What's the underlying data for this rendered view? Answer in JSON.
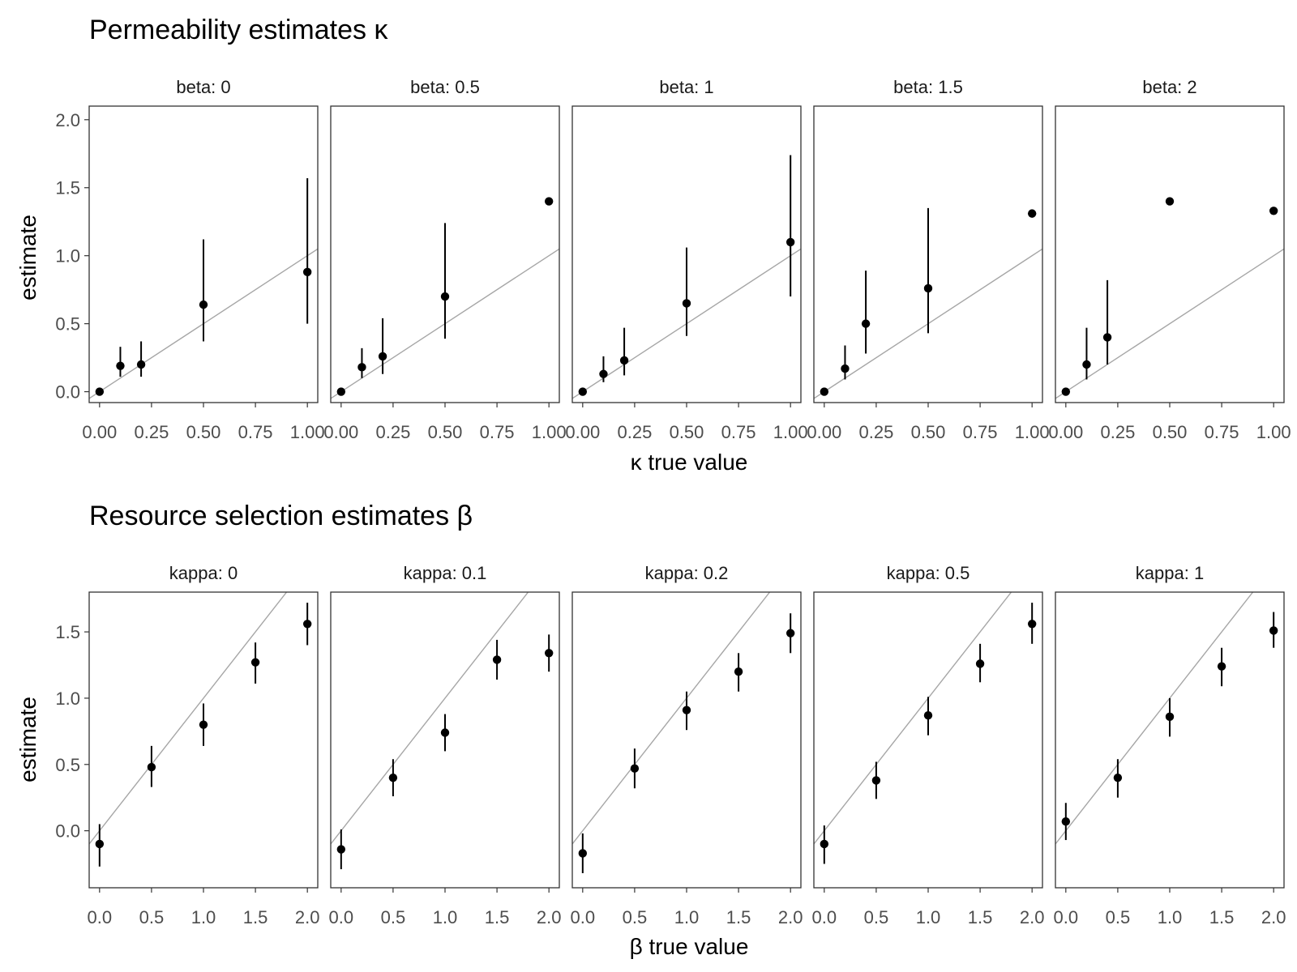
{
  "colors": {
    "points": "#000000",
    "reference_line": "#a6a6a6",
    "panel_border": "#333333",
    "tick_text": "#4d4d4d"
  },
  "chart_data": [
    {
      "type": "scatter",
      "title": "Permeability estimates κ",
      "xlabel": "κ true value",
      "ylabel": "estimate",
      "xlim": [
        -0.05,
        1.05
      ],
      "ylim": [
        -0.08,
        2.1
      ],
      "x_ticks": [
        0,
        0.25,
        0.5,
        0.75,
        1
      ],
      "x_tick_labels": [
        "0.00",
        "0.25",
        "0.50",
        "0.75",
        "1.00"
      ],
      "y_ticks": [
        0,
        0.5,
        1,
        1.5,
        2
      ],
      "y_tick_labels": [
        "0.0",
        "0.5",
        "1.0",
        "1.5",
        "2.0"
      ],
      "reference_line": "y = x",
      "grid": false,
      "facets": [
        {
          "label": "beta: 0",
          "points": [
            {
              "x": 0,
              "y": 0.0,
              "lo": 0.0,
              "hi": 0.0
            },
            {
              "x": 0.1,
              "y": 0.19,
              "lo": 0.11,
              "hi": 0.33
            },
            {
              "x": 0.2,
              "y": 0.2,
              "lo": 0.11,
              "hi": 0.37
            },
            {
              "x": 0.5,
              "y": 0.64,
              "lo": 0.37,
              "hi": 1.12
            },
            {
              "x": 1.0,
              "y": 0.88,
              "lo": 0.5,
              "hi": 1.57
            }
          ]
        },
        {
          "label": "beta: 0.5",
          "points": [
            {
              "x": 0,
              "y": 0.0,
              "lo": 0.0,
              "hi": 0.0
            },
            {
              "x": 0.1,
              "y": 0.18,
              "lo": 0.1,
              "hi": 0.32
            },
            {
              "x": 0.2,
              "y": 0.26,
              "lo": 0.13,
              "hi": 0.54
            },
            {
              "x": 0.5,
              "y": 0.7,
              "lo": 0.39,
              "hi": 1.24
            },
            {
              "x": 1.0,
              "y": 1.4,
              "lo": 1.4,
              "hi": 1.4
            }
          ]
        },
        {
          "label": "beta: 1",
          "points": [
            {
              "x": 0,
              "y": 0.0,
              "lo": 0.0,
              "hi": 0.0
            },
            {
              "x": 0.1,
              "y": 0.13,
              "lo": 0.07,
              "hi": 0.26
            },
            {
              "x": 0.2,
              "y": 0.23,
              "lo": 0.12,
              "hi": 0.47
            },
            {
              "x": 0.5,
              "y": 0.65,
              "lo": 0.41,
              "hi": 1.06
            },
            {
              "x": 1.0,
              "y": 1.1,
              "lo": 0.7,
              "hi": 1.74
            }
          ]
        },
        {
          "label": "beta: 1.5",
          "points": [
            {
              "x": 0,
              "y": 0.0,
              "lo": 0.0,
              "hi": 0.0
            },
            {
              "x": 0.1,
              "y": 0.17,
              "lo": 0.09,
              "hi": 0.34
            },
            {
              "x": 0.2,
              "y": 0.5,
              "lo": 0.28,
              "hi": 0.89
            },
            {
              "x": 0.5,
              "y": 0.76,
              "lo": 0.43,
              "hi": 1.35
            },
            {
              "x": 1.0,
              "y": 1.31,
              "lo": 1.31,
              "hi": 1.31
            }
          ]
        },
        {
          "label": "beta: 2",
          "points": [
            {
              "x": 0,
              "y": 0.0,
              "lo": 0.0,
              "hi": 0.0
            },
            {
              "x": 0.1,
              "y": 0.2,
              "lo": 0.09,
              "hi": 0.47
            },
            {
              "x": 0.2,
              "y": 0.4,
              "lo": 0.2,
              "hi": 0.82
            },
            {
              "x": 0.5,
              "y": 1.4,
              "lo": 1.4,
              "hi": 1.4
            },
            {
              "x": 1.0,
              "y": 1.33,
              "lo": 1.33,
              "hi": 1.33
            }
          ]
        }
      ]
    },
    {
      "type": "scatter",
      "title": "Resource selection estimates β",
      "xlabel": "β true value",
      "ylabel": "estimate",
      "xlim": [
        -0.1,
        2.1
      ],
      "ylim": [
        -0.43,
        1.8
      ],
      "x_ticks": [
        0,
        0.5,
        1,
        1.5,
        2
      ],
      "x_tick_labels": [
        "0.0",
        "0.5",
        "1.0",
        "1.5",
        "2.0"
      ],
      "y_ticks": [
        0,
        0.5,
        1,
        1.5
      ],
      "y_tick_labels": [
        "0.0",
        "0.5",
        "1.0",
        "1.5"
      ],
      "reference_line": "y = x",
      "grid": false,
      "facets": [
        {
          "label": "kappa: 0",
          "points": [
            {
              "x": 0,
              "y": -0.1,
              "lo": -0.27,
              "hi": 0.05
            },
            {
              "x": 0.5,
              "y": 0.48,
              "lo": 0.33,
              "hi": 0.64
            },
            {
              "x": 1.0,
              "y": 0.8,
              "lo": 0.64,
              "hi": 0.96
            },
            {
              "x": 1.5,
              "y": 1.27,
              "lo": 1.11,
              "hi": 1.42
            },
            {
              "x": 2.0,
              "y": 1.56,
              "lo": 1.4,
              "hi": 1.72
            }
          ]
        },
        {
          "label": "kappa: 0.1",
          "points": [
            {
              "x": 0,
              "y": -0.14,
              "lo": -0.29,
              "hi": 0.01
            },
            {
              "x": 0.5,
              "y": 0.4,
              "lo": 0.26,
              "hi": 0.54
            },
            {
              "x": 1.0,
              "y": 0.74,
              "lo": 0.6,
              "hi": 0.88
            },
            {
              "x": 1.5,
              "y": 1.29,
              "lo": 1.14,
              "hi": 1.44
            },
            {
              "x": 2.0,
              "y": 1.34,
              "lo": 1.2,
              "hi": 1.48
            }
          ]
        },
        {
          "label": "kappa: 0.2",
          "points": [
            {
              "x": 0,
              "y": -0.17,
              "lo": -0.32,
              "hi": -0.02
            },
            {
              "x": 0.5,
              "y": 0.47,
              "lo": 0.32,
              "hi": 0.62
            },
            {
              "x": 1.0,
              "y": 0.91,
              "lo": 0.76,
              "hi": 1.05
            },
            {
              "x": 1.5,
              "y": 1.2,
              "lo": 1.05,
              "hi": 1.34
            },
            {
              "x": 2.0,
              "y": 1.49,
              "lo": 1.34,
              "hi": 1.64
            }
          ]
        },
        {
          "label": "kappa: 0.5",
          "points": [
            {
              "x": 0,
              "y": -0.1,
              "lo": -0.25,
              "hi": 0.04
            },
            {
              "x": 0.5,
              "y": 0.38,
              "lo": 0.24,
              "hi": 0.52
            },
            {
              "x": 1.0,
              "y": 0.87,
              "lo": 0.72,
              "hi": 1.01
            },
            {
              "x": 1.5,
              "y": 1.26,
              "lo": 1.12,
              "hi": 1.41
            },
            {
              "x": 2.0,
              "y": 1.56,
              "lo": 1.41,
              "hi": 1.72
            }
          ]
        },
        {
          "label": "kappa: 1",
          "points": [
            {
              "x": 0,
              "y": 0.07,
              "lo": -0.07,
              "hi": 0.21
            },
            {
              "x": 0.5,
              "y": 0.4,
              "lo": 0.25,
              "hi": 0.54
            },
            {
              "x": 1.0,
              "y": 0.86,
              "lo": 0.71,
              "hi": 1.0
            },
            {
              "x": 1.5,
              "y": 1.24,
              "lo": 1.09,
              "hi": 1.38
            },
            {
              "x": 2.0,
              "y": 1.51,
              "lo": 1.38,
              "hi": 1.65
            }
          ]
        }
      ]
    }
  ]
}
